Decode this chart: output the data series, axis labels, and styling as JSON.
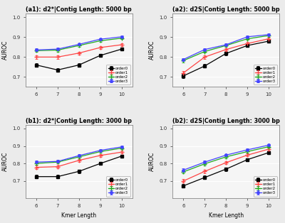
{
  "subplots": [
    {
      "title": "(a1): d2*|Contig Length: 5000 bp",
      "series": [
        {
          "label": "order0",
          "color": "#000000",
          "marker": "s",
          "x": [
            6,
            7,
            8,
            9,
            10
          ],
          "y": [
            0.76,
            0.735,
            0.76,
            0.808,
            0.84
          ],
          "yerr": [
            0.01,
            0.01,
            0.01,
            0.008,
            0.008
          ]
        },
        {
          "label": "order1",
          "color": "#FF4444",
          "marker": "+",
          "x": [
            6,
            7,
            8,
            9,
            10
          ],
          "y": [
            0.8,
            0.8,
            0.82,
            0.848,
            0.862
          ],
          "yerr": [
            0.008,
            0.008,
            0.008,
            0.007,
            0.007
          ]
        },
        {
          "label": "order2",
          "color": "#22AA22",
          "marker": "+",
          "x": [
            6,
            7,
            8,
            9,
            10
          ],
          "y": [
            0.832,
            0.835,
            0.858,
            0.882,
            0.895
          ],
          "yerr": [
            0.007,
            0.007,
            0.006,
            0.006,
            0.005
          ]
        },
        {
          "label": "order3",
          "color": "#4444FF",
          "marker": "o",
          "x": [
            6,
            7,
            8,
            9,
            10
          ],
          "y": [
            0.836,
            0.84,
            0.864,
            0.89,
            0.902
          ],
          "yerr": [
            0.007,
            0.007,
            0.006,
            0.005,
            0.005
          ]
        }
      ],
      "ylim": [
        0.65,
        1.02
      ],
      "yticks": [
        0.7,
        0.8,
        0.9,
        1.0
      ]
    },
    {
      "title": "(a2): d2S|Contig Length: 5000 bp",
      "series": [
        {
          "label": "order0",
          "color": "#000000",
          "marker": "s",
          "x": [
            6,
            7,
            8,
            9,
            10
          ],
          "y": [
            0.705,
            0.755,
            0.818,
            0.858,
            0.88
          ],
          "yerr": [
            0.01,
            0.009,
            0.008,
            0.007,
            0.007
          ]
        },
        {
          "label": "order1",
          "color": "#FF4444",
          "marker": "+",
          "x": [
            6,
            7,
            8,
            9,
            10
          ],
          "y": [
            0.72,
            0.8,
            0.838,
            0.868,
            0.892
          ],
          "yerr": [
            0.009,
            0.008,
            0.007,
            0.007,
            0.006
          ]
        },
        {
          "label": "order2",
          "color": "#22AA22",
          "marker": "+",
          "x": [
            6,
            7,
            8,
            9,
            10
          ],
          "y": [
            0.782,
            0.828,
            0.858,
            0.892,
            0.908
          ],
          "yerr": [
            0.008,
            0.007,
            0.007,
            0.006,
            0.005
          ]
        },
        {
          "label": "order3",
          "color": "#4444FF",
          "marker": "o",
          "x": [
            6,
            7,
            8,
            9,
            10
          ],
          "y": [
            0.788,
            0.838,
            0.862,
            0.902,
            0.913
          ],
          "yerr": [
            0.007,
            0.006,
            0.006,
            0.005,
            0.005
          ]
        }
      ],
      "ylim": [
        0.65,
        1.02
      ],
      "yticks": [
        0.7,
        0.8,
        0.9,
        1.0
      ]
    },
    {
      "title": "(b1): d2*|Contig Length: 3000 bp",
      "series": [
        {
          "label": "order0",
          "color": "#000000",
          "marker": "s",
          "x": [
            6,
            7,
            8,
            9,
            10
          ],
          "y": [
            0.725,
            0.725,
            0.755,
            0.8,
            0.842
          ],
          "yerr": [
            0.011,
            0.011,
            0.01,
            0.009,
            0.009
          ]
        },
        {
          "label": "order1",
          "color": "#FF4444",
          "marker": "+",
          "x": [
            6,
            7,
            8,
            9,
            10
          ],
          "y": [
            0.778,
            0.782,
            0.818,
            0.846,
            0.865
          ],
          "yerr": [
            0.009,
            0.009,
            0.008,
            0.008,
            0.007
          ]
        },
        {
          "label": "order2",
          "color": "#22AA22",
          "marker": "+",
          "x": [
            6,
            7,
            8,
            9,
            10
          ],
          "y": [
            0.8,
            0.808,
            0.838,
            0.868,
            0.888
          ],
          "yerr": [
            0.008,
            0.008,
            0.007,
            0.007,
            0.006
          ]
        },
        {
          "label": "order3",
          "color": "#4444FF",
          "marker": "o",
          "x": [
            6,
            7,
            8,
            9,
            10
          ],
          "y": [
            0.808,
            0.812,
            0.845,
            0.875,
            0.895
          ],
          "yerr": [
            0.008,
            0.008,
            0.007,
            0.006,
            0.006
          ]
        }
      ],
      "ylim": [
        0.6,
        1.02
      ],
      "yticks": [
        0.7,
        0.8,
        0.9,
        1.0
      ]
    },
    {
      "title": "(b2): d2S|Contig Length: 3000 bp",
      "series": [
        {
          "label": "order0",
          "color": "#000000",
          "marker": "s",
          "x": [
            6,
            7,
            8,
            9,
            10
          ],
          "y": [
            0.672,
            0.72,
            0.768,
            0.822,
            0.862
          ],
          "yerr": [
            0.011,
            0.01,
            0.01,
            0.009,
            0.008
          ]
        },
        {
          "label": "order1",
          "color": "#FF4444",
          "marker": "+",
          "x": [
            6,
            7,
            8,
            9,
            10
          ],
          "y": [
            0.7,
            0.755,
            0.805,
            0.848,
            0.882
          ],
          "yerr": [
            0.01,
            0.009,
            0.009,
            0.008,
            0.007
          ]
        },
        {
          "label": "order2",
          "color": "#22AA22",
          "marker": "+",
          "x": [
            6,
            7,
            8,
            9,
            10
          ],
          "y": [
            0.752,
            0.798,
            0.838,
            0.868,
            0.896
          ],
          "yerr": [
            0.009,
            0.008,
            0.008,
            0.007,
            0.006
          ]
        },
        {
          "label": "order3",
          "color": "#4444FF",
          "marker": "o",
          "x": [
            6,
            7,
            8,
            9,
            10
          ],
          "y": [
            0.762,
            0.808,
            0.848,
            0.878,
            0.905
          ],
          "yerr": [
            0.009,
            0.008,
            0.007,
            0.007,
            0.006
          ]
        }
      ],
      "ylim": [
        0.6,
        1.02
      ],
      "yticks": [
        0.7,
        0.8,
        0.9,
        1.0
      ]
    }
  ],
  "xlabel": "Kmer Length",
  "ylabel": "AUROC",
  "bg_color": "#EBEBEB",
  "plot_bg_color": "#F5F5F5",
  "grid_color": "#FFFFFF",
  "xticks": [
    6,
    7,
    8,
    9,
    10
  ]
}
